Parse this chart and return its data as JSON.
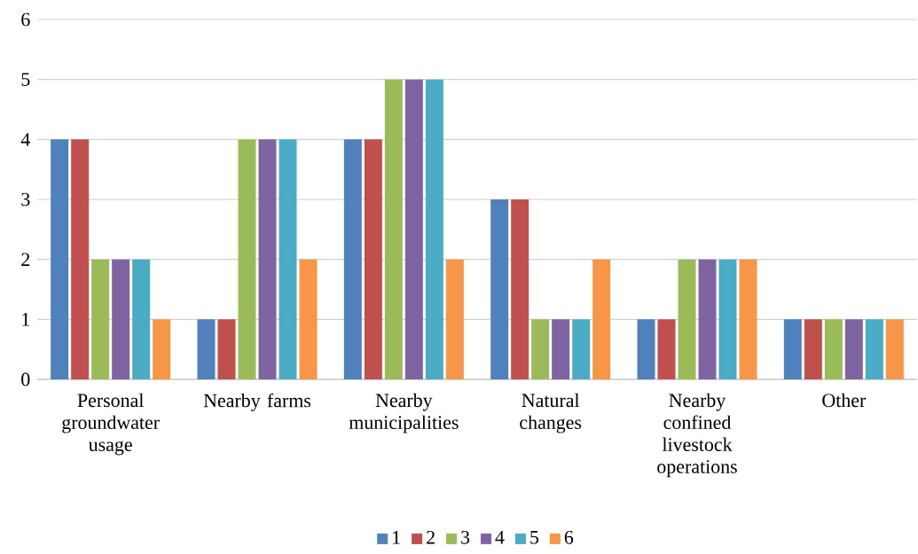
{
  "chart_data": {
    "type": "bar",
    "categories": [
      "Personal groundwater usage",
      "Nearby farms",
      "Nearby municipalities",
      "Natural changes",
      "Nearby confined livestock operations",
      "Other"
    ],
    "series": [
      {
        "name": "1",
        "color": "#4f81bd",
        "values": [
          4,
          1,
          4,
          3,
          1,
          1
        ]
      },
      {
        "name": "2",
        "color": "#c0504d",
        "values": [
          4,
          1,
          4,
          3,
          1,
          1
        ]
      },
      {
        "name": "3",
        "color": "#9bbb59",
        "values": [
          2,
          4,
          5,
          1,
          2,
          1
        ]
      },
      {
        "name": "4",
        "color": "#8064a2",
        "values": [
          2,
          4,
          5,
          1,
          2,
          1
        ]
      },
      {
        "name": "5",
        "color": "#4bacc6",
        "values": [
          2,
          4,
          5,
          1,
          2,
          1
        ]
      },
      {
        "name": "6",
        "color": "#f79646",
        "values": [
          1,
          2,
          2,
          2,
          2,
          1
        ]
      }
    ],
    "ylim": [
      0,
      6
    ],
    "yticks": [
      0,
      1,
      2,
      3,
      4,
      5,
      6
    ],
    "grid": "y",
    "legend": "bottom"
  }
}
